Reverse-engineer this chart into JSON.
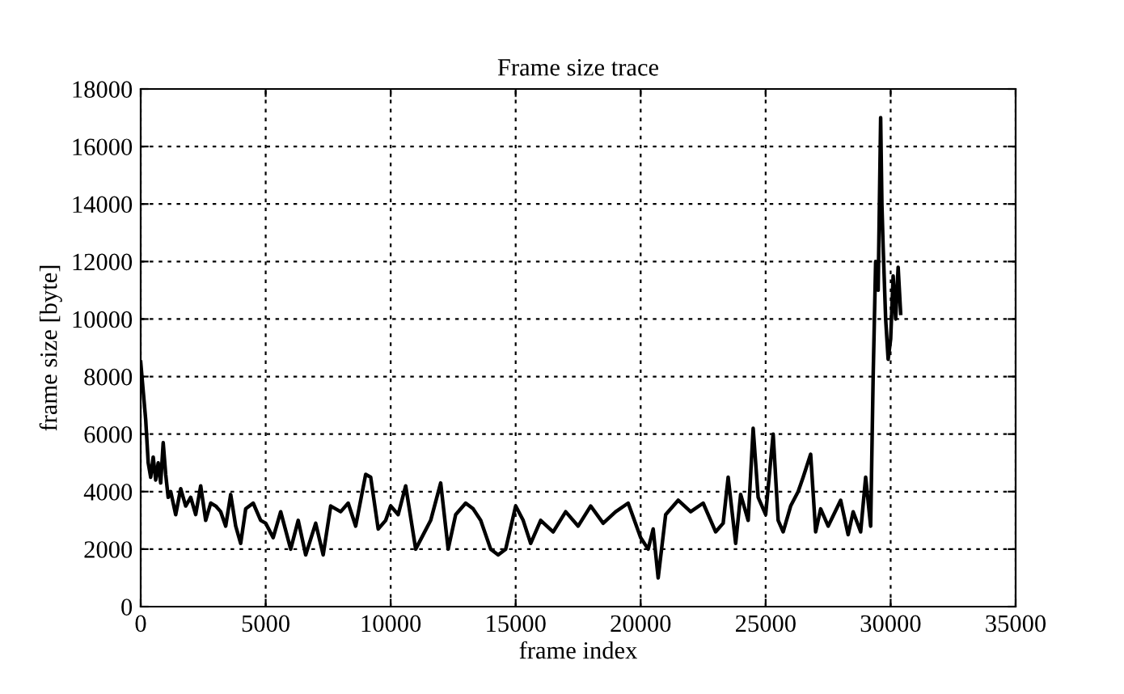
{
  "chart_data": {
    "type": "line",
    "title": "Frame size trace",
    "xlabel": "frame index",
    "ylabel": "frame size [byte]",
    "series": [
      {
        "color": "#000000",
        "x": [
          0,
          100,
          200,
          300,
          400,
          500,
          600,
          700,
          800,
          900,
          1000,
          1100,
          1200,
          1400,
          1600,
          1800,
          2000,
          2200,
          2400,
          2600,
          2800,
          3000,
          3200,
          3400,
          3600,
          3800,
          4000,
          4200,
          4500,
          4800,
          5000,
          5300,
          5600,
          6000,
          6300,
          6600,
          7000,
          7300,
          7600,
          8000,
          8300,
          8600,
          9000,
          9200,
          9500,
          9800,
          10000,
          10300,
          10600,
          11000,
          11300,
          11600,
          12000,
          12300,
          12600,
          13000,
          13300,
          13600,
          14000,
          14300,
          14600,
          15000,
          15300,
          15600,
          16000,
          16500,
          17000,
          17500,
          18000,
          18500,
          19000,
          19500,
          20000,
          20300,
          20500,
          20700,
          21000,
          21500,
          22000,
          22500,
          23000,
          23300,
          23500,
          23800,
          24000,
          24300,
          24500,
          24700,
          25000,
          25300,
          25500,
          25700,
          26000,
          26300,
          26500,
          26800,
          27000,
          27200,
          27500,
          28000,
          28300,
          28500,
          28800,
          29000,
          29200,
          29300,
          29400,
          29500,
          29600,
          29650,
          29700,
          29800,
          29900,
          30000,
          30100,
          30200,
          30300,
          30400
        ],
        "values": [
          8500,
          7500,
          6500,
          5000,
          4500,
          5200,
          4400,
          5000,
          4300,
          5700,
          4600,
          3800,
          4000,
          3200,
          4100,
          3500,
          3800,
          3200,
          4200,
          3000,
          3600,
          3500,
          3300,
          2800,
          3900,
          2800,
          2200,
          3400,
          3600,
          3000,
          2900,
          2400,
          3300,
          2000,
          3000,
          1800,
          2900,
          1800,
          3500,
          3300,
          3600,
          2800,
          4600,
          4500,
          2700,
          3000,
          3500,
          3200,
          4200,
          2000,
          2500,
          3000,
          4300,
          2000,
          3200,
          3600,
          3400,
          3000,
          2000,
          1800,
          2000,
          3500,
          3000,
          2200,
          3000,
          2600,
          3300,
          2800,
          3500,
          2900,
          3300,
          3600,
          2400,
          2000,
          2700,
          1000,
          3200,
          3700,
          3300,
          3600,
          2600,
          2900,
          4500,
          2200,
          3900,
          3000,
          6200,
          3800,
          3200,
          6000,
          3000,
          2600,
          3500,
          4000,
          4500,
          5300,
          2600,
          3400,
          2800,
          3700,
          2500,
          3300,
          2600,
          4500,
          2800,
          8000,
          12000,
          11000,
          17000,
          14000,
          12500,
          10000,
          8600,
          9300,
          11500,
          10000,
          11800,
          10200
        ]
      }
    ],
    "xlim": [
      0,
      35000
    ],
    "xticks": [
      0,
      5000,
      10000,
      15000,
      20000,
      25000,
      30000,
      35000
    ],
    "ylim": [
      0,
      18000
    ],
    "yticks": [
      0,
      2000,
      4000,
      6000,
      8000,
      10000,
      12000,
      14000,
      16000,
      18000
    ],
    "grid": true,
    "marker": "none",
    "line_style": "solid"
  }
}
